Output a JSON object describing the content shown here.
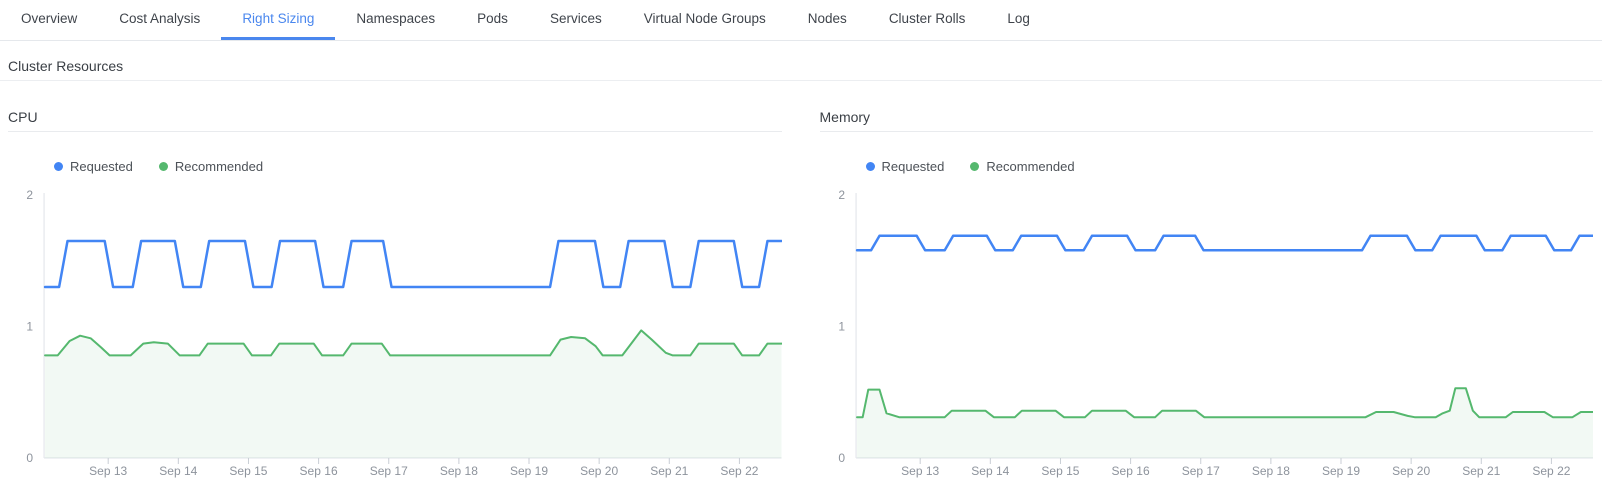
{
  "tabs": {
    "active_color": "#4a87ee",
    "items": [
      {
        "label": "Overview",
        "active": false
      },
      {
        "label": "Cost Analysis",
        "active": false
      },
      {
        "label": "Right Sizing",
        "active": true
      },
      {
        "label": "Namespaces",
        "active": false
      },
      {
        "label": "Pods",
        "active": false
      },
      {
        "label": "Services",
        "active": false
      },
      {
        "label": "Virtual Node Groups",
        "active": false
      },
      {
        "label": "Nodes",
        "active": false
      },
      {
        "label": "Cluster Rolls",
        "active": false
      },
      {
        "label": "Log",
        "active": false
      }
    ]
  },
  "section": {
    "title": "Cluster Resources"
  },
  "axis_style": {
    "axis_color": "#dfe3e8",
    "tick_color": "#c9ced5",
    "label_color": "#8d939c"
  },
  "chart_data": [
    {
      "type": "line",
      "title": "CPU",
      "legend_position": "top-left",
      "grid": false,
      "x_axis": {
        "tick_days": [
          13,
          14,
          15,
          16,
          17,
          18,
          19,
          20,
          21,
          22
        ],
        "tick_labels": [
          "Sep 13",
          "Sep 14",
          "Sep 15",
          "Sep 16",
          "Sep 17",
          "Sep 18",
          "Sep 19",
          "Sep 20",
          "Sep 21",
          "Sep 22"
        ],
        "range_days": [
          12.1,
          22.6
        ]
      },
      "y_axis": {
        "ticks": [
          0,
          1,
          2
        ],
        "range": [
          0,
          2
        ]
      },
      "series": [
        {
          "name": "Requested",
          "color": "#4285f4",
          "fill": false,
          "points": [
            [
              12.1,
              1.3
            ],
            [
              12.3,
              1.3
            ],
            [
              12.42,
              1.65
            ],
            [
              12.95,
              1.65
            ],
            [
              13.07,
              1.3
            ],
            [
              13.35,
              1.3
            ],
            [
              13.47,
              1.65
            ],
            [
              13.95,
              1.65
            ],
            [
              14.07,
              1.3
            ],
            [
              14.32,
              1.3
            ],
            [
              14.44,
              1.65
            ],
            [
              14.95,
              1.65
            ],
            [
              15.07,
              1.3
            ],
            [
              15.33,
              1.3
            ],
            [
              15.45,
              1.65
            ],
            [
              15.95,
              1.65
            ],
            [
              16.07,
              1.3
            ],
            [
              16.35,
              1.3
            ],
            [
              16.47,
              1.65
            ],
            [
              16.92,
              1.65
            ],
            [
              17.04,
              1.3
            ],
            [
              19.3,
              1.3
            ],
            [
              19.42,
              1.65
            ],
            [
              19.94,
              1.65
            ],
            [
              20.06,
              1.3
            ],
            [
              20.3,
              1.3
            ],
            [
              20.42,
              1.65
            ],
            [
              20.93,
              1.65
            ],
            [
              21.05,
              1.3
            ],
            [
              21.3,
              1.3
            ],
            [
              21.42,
              1.65
            ],
            [
              21.92,
              1.65
            ],
            [
              22.04,
              1.3
            ],
            [
              22.28,
              1.3
            ],
            [
              22.4,
              1.65
            ],
            [
              22.6,
              1.65
            ]
          ]
        },
        {
          "name": "Recommended",
          "color": "#55b86e",
          "fill": true,
          "fill_color": "rgba(85,184,110,0.08)",
          "points": [
            [
              12.1,
              0.78
            ],
            [
              12.28,
              0.78
            ],
            [
              12.45,
              0.89
            ],
            [
              12.6,
              0.93
            ],
            [
              12.75,
              0.91
            ],
            [
              12.9,
              0.84
            ],
            [
              13.02,
              0.78
            ],
            [
              13.32,
              0.78
            ],
            [
              13.5,
              0.87
            ],
            [
              13.65,
              0.88
            ],
            [
              13.85,
              0.87
            ],
            [
              14.02,
              0.78
            ],
            [
              14.3,
              0.78
            ],
            [
              14.42,
              0.87
            ],
            [
              14.93,
              0.87
            ],
            [
              15.05,
              0.78
            ],
            [
              15.32,
              0.78
            ],
            [
              15.44,
              0.87
            ],
            [
              15.93,
              0.87
            ],
            [
              16.05,
              0.78
            ],
            [
              16.35,
              0.78
            ],
            [
              16.47,
              0.87
            ],
            [
              16.9,
              0.87
            ],
            [
              17.02,
              0.78
            ],
            [
              19.3,
              0.78
            ],
            [
              19.45,
              0.9
            ],
            [
              19.6,
              0.92
            ],
            [
              19.8,
              0.91
            ],
            [
              19.95,
              0.85
            ],
            [
              20.05,
              0.78
            ],
            [
              20.33,
              0.78
            ],
            [
              20.6,
              0.97
            ],
            [
              20.75,
              0.9
            ],
            [
              20.95,
              0.8
            ],
            [
              21.05,
              0.78
            ],
            [
              21.3,
              0.78
            ],
            [
              21.42,
              0.87
            ],
            [
              21.92,
              0.87
            ],
            [
              22.04,
              0.78
            ],
            [
              22.28,
              0.78
            ],
            [
              22.4,
              0.87
            ],
            [
              22.6,
              0.87
            ]
          ]
        }
      ]
    },
    {
      "type": "line",
      "title": "Memory",
      "legend_position": "top-left",
      "grid": false,
      "x_axis": {
        "tick_days": [
          13,
          14,
          15,
          16,
          17,
          18,
          19,
          20,
          21,
          22
        ],
        "tick_labels": [
          "Sep 13",
          "Sep 14",
          "Sep 15",
          "Sep 16",
          "Sep 17",
          "Sep 18",
          "Sep 19",
          "Sep 20",
          "Sep 21",
          "Sep 22"
        ],
        "range_days": [
          12.1,
          22.6
        ]
      },
      "y_axis": {
        "ticks": [
          0,
          1,
          2
        ],
        "range": [
          0,
          2
        ]
      },
      "series": [
        {
          "name": "Requested",
          "color": "#4285f4",
          "fill": false,
          "points": [
            [
              12.1,
              1.58
            ],
            [
              12.3,
              1.58
            ],
            [
              12.42,
              1.69
            ],
            [
              12.95,
              1.69
            ],
            [
              13.07,
              1.58
            ],
            [
              13.35,
              1.58
            ],
            [
              13.47,
              1.69
            ],
            [
              13.95,
              1.69
            ],
            [
              14.07,
              1.58
            ],
            [
              14.32,
              1.58
            ],
            [
              14.44,
              1.69
            ],
            [
              14.95,
              1.69
            ],
            [
              15.07,
              1.58
            ],
            [
              15.33,
              1.58
            ],
            [
              15.45,
              1.69
            ],
            [
              15.95,
              1.69
            ],
            [
              16.07,
              1.58
            ],
            [
              16.35,
              1.58
            ],
            [
              16.47,
              1.69
            ],
            [
              16.92,
              1.69
            ],
            [
              17.04,
              1.58
            ],
            [
              19.3,
              1.58
            ],
            [
              19.42,
              1.69
            ],
            [
              19.94,
              1.69
            ],
            [
              20.06,
              1.58
            ],
            [
              20.3,
              1.58
            ],
            [
              20.42,
              1.69
            ],
            [
              20.93,
              1.69
            ],
            [
              21.05,
              1.58
            ],
            [
              21.3,
              1.58
            ],
            [
              21.42,
              1.69
            ],
            [
              21.92,
              1.69
            ],
            [
              22.04,
              1.58
            ],
            [
              22.28,
              1.58
            ],
            [
              22.4,
              1.69
            ],
            [
              22.6,
              1.69
            ]
          ]
        },
        {
          "name": "Recommended",
          "color": "#55b86e",
          "fill": true,
          "fill_color": "rgba(85,184,110,0.08)",
          "points": [
            [
              12.1,
              0.31
            ],
            [
              12.18,
              0.31
            ],
            [
              12.26,
              0.52
            ],
            [
              12.42,
              0.52
            ],
            [
              12.52,
              0.34
            ],
            [
              12.7,
              0.31
            ],
            [
              13.35,
              0.31
            ],
            [
              13.45,
              0.36
            ],
            [
              13.93,
              0.36
            ],
            [
              14.05,
              0.31
            ],
            [
              14.35,
              0.31
            ],
            [
              14.45,
              0.36
            ],
            [
              14.93,
              0.36
            ],
            [
              15.05,
              0.31
            ],
            [
              15.35,
              0.31
            ],
            [
              15.45,
              0.36
            ],
            [
              15.93,
              0.36
            ],
            [
              16.05,
              0.31
            ],
            [
              16.35,
              0.31
            ],
            [
              16.45,
              0.36
            ],
            [
              16.93,
              0.36
            ],
            [
              17.05,
              0.31
            ],
            [
              19.35,
              0.31
            ],
            [
              19.5,
              0.35
            ],
            [
              19.75,
              0.35
            ],
            [
              19.95,
              0.32
            ],
            [
              20.05,
              0.31
            ],
            [
              20.35,
              0.31
            ],
            [
              20.45,
              0.34
            ],
            [
              20.55,
              0.36
            ],
            [
              20.63,
              0.53
            ],
            [
              20.78,
              0.53
            ],
            [
              20.88,
              0.36
            ],
            [
              20.97,
              0.31
            ],
            [
              21.35,
              0.31
            ],
            [
              21.45,
              0.35
            ],
            [
              21.9,
              0.35
            ],
            [
              22.02,
              0.31
            ],
            [
              22.3,
              0.31
            ],
            [
              22.42,
              0.35
            ],
            [
              22.6,
              0.35
            ]
          ]
        }
      ]
    }
  ]
}
